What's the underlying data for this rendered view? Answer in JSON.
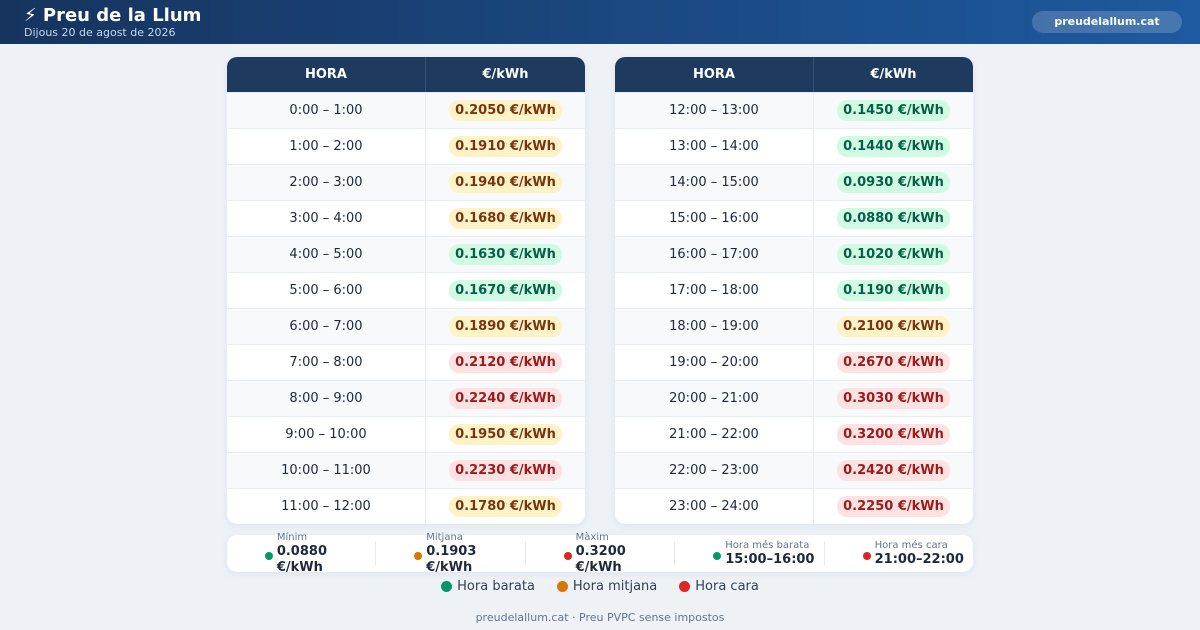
{
  "header": {
    "title": "⚡ Preu de la Llum",
    "subtitle": "Dijous 20 de agost de 2026",
    "site_button": "preudelallum.cat"
  },
  "tables": [
    {
      "columns": [
        "HORA",
        "€/kWh"
      ],
      "rows": [
        {
          "hour": "0:00 – 1:00",
          "price": "0.2050 €/kWh",
          "level": 1
        },
        {
          "hour": "1:00 – 2:00",
          "price": "0.1910 €/kWh",
          "level": 1
        },
        {
          "hour": "2:00 – 3:00",
          "price": "0.1940 €/kWh",
          "level": 1
        },
        {
          "hour": "3:00 – 4:00",
          "price": "0.1680 €/kWh",
          "level": 1
        },
        {
          "hour": "4:00 – 5:00",
          "price": "0.1630 €/kWh",
          "level": 0
        },
        {
          "hour": "5:00 – 6:00",
          "price": "0.1670 €/kWh",
          "level": 0
        },
        {
          "hour": "6:00 – 7:00",
          "price": "0.1890 €/kWh",
          "level": 1
        },
        {
          "hour": "7:00 – 8:00",
          "price": "0.2120 €/kWh",
          "level": 2
        },
        {
          "hour": "8:00 – 9:00",
          "price": "0.2240 €/kWh",
          "level": 2
        },
        {
          "hour": "9:00 – 10:00",
          "price": "0.1950 €/kWh",
          "level": 1
        },
        {
          "hour": "10:00 – 11:00",
          "price": "0.2230 €/kWh",
          "level": 2
        },
        {
          "hour": "11:00 – 12:00",
          "price": "0.1780 €/kWh",
          "level": 1
        }
      ]
    },
    {
      "columns": [
        "HORA",
        "€/kWh"
      ],
      "rows": [
        {
          "hour": "12:00 – 13:00",
          "price": "0.1450 €/kWh",
          "level": 0
        },
        {
          "hour": "13:00 – 14:00",
          "price": "0.1440 €/kWh",
          "level": 0
        },
        {
          "hour": "14:00 – 15:00",
          "price": "0.0930 €/kWh",
          "level": 0
        },
        {
          "hour": "15:00 – 16:00",
          "price": "0.0880 €/kWh",
          "level": 0
        },
        {
          "hour": "16:00 – 17:00",
          "price": "0.1020 €/kWh",
          "level": 0
        },
        {
          "hour": "17:00 – 18:00",
          "price": "0.1190 €/kWh",
          "level": 0
        },
        {
          "hour": "18:00 – 19:00",
          "price": "0.2100 €/kWh",
          "level": 1
        },
        {
          "hour": "19:00 – 20:00",
          "price": "0.2670 €/kWh",
          "level": 2
        },
        {
          "hour": "20:00 – 21:00",
          "price": "0.3030 €/kWh",
          "level": 2
        },
        {
          "hour": "21:00 – 22:00",
          "price": "0.3200 €/kWh",
          "level": 2
        },
        {
          "hour": "22:00 – 23:00",
          "price": "0.2420 €/kWh",
          "level": 2
        },
        {
          "hour": "23:00 – 24:00",
          "price": "0.2250 €/kWh",
          "level": 2
        }
      ]
    }
  ],
  "stats": [
    {
      "label": "Mínim",
      "value": "0.0880 €/kWh",
      "color": "#059669"
    },
    {
      "label": "Mitjana",
      "value": "0.1903 €/kWh",
      "color": "#d97706"
    },
    {
      "label": "Màxim",
      "value": "0.3200 €/kWh",
      "color": "#dc2626"
    },
    {
      "label": "Hora més barata",
      "value": "15:00–16:00",
      "color": "#059669"
    },
    {
      "label": "Hora més cara",
      "value": "21:00–22:00",
      "color": "#dc2626"
    }
  ],
  "legend": [
    {
      "label": "Hora barata",
      "color": "#059669"
    },
    {
      "label": "Hora mitjana",
      "color": "#d97706"
    },
    {
      "label": "Hora cara",
      "color": "#dc2626"
    }
  ],
  "footer": "preudelallum.cat · Preu PVPC sense impostos"
}
